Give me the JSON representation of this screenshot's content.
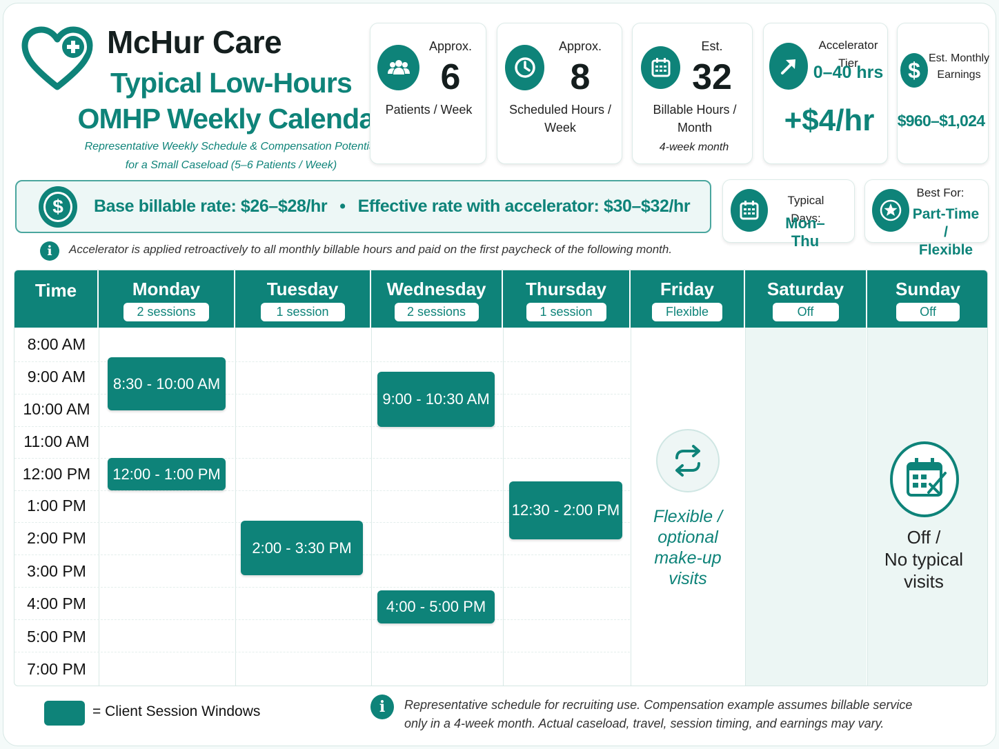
{
  "header": {
    "brand": "McHur Care",
    "title_line1": "Typical Low-Hours",
    "title_line2": "OMHP Weekly Calendar",
    "subtitle_line1": "Representative Weekly Schedule & Compensation Potential",
    "subtitle_line2": "for a Small Caseload (5–6 Patients / Week)"
  },
  "stats": {
    "patients": {
      "top": "Approx.",
      "value": "6",
      "label": "Patients / Week",
      "icon": "people-icon"
    },
    "hours": {
      "top": "Approx.",
      "value": "8",
      "label_line1": "Scheduled Hours /",
      "label_line2": "Week",
      "icon": "clock-icon"
    },
    "billable": {
      "top": "Est.",
      "value": "32",
      "label_line1": "Billable Hours /",
      "label_line2": "Month",
      "note": "4-week month",
      "icon": "calendar-icon"
    },
    "tier": {
      "top": "Accelerator Tier",
      "range": "0–40 hrs",
      "value": "+$4/hr",
      "icon": "arrow-up-right-icon"
    },
    "earnings": {
      "top_line1": "Est. Monthly",
      "top_line2": "Earnings",
      "value": "$960–$1,024",
      "icon": "dollar-icon"
    }
  },
  "rates": {
    "base": "Base billable rate: $26–$28/hr",
    "separator": "•",
    "effective": "Effective rate with accelerator: $30–$32/hr",
    "note": "Accelerator is applied retroactively to all monthly billable hours and paid on the first paycheck of the following month."
  },
  "typical_days": {
    "label": "Typical Days:",
    "value": "Mon–Thu"
  },
  "best_for": {
    "label": "Best For:",
    "value_line1": "Part-Time /",
    "value_line2": "Flexible"
  },
  "calendar": {
    "time_header": "Time",
    "days": [
      {
        "name": "Monday",
        "badge": "2 sessions"
      },
      {
        "name": "Tuesday",
        "badge": "1 session"
      },
      {
        "name": "Wednesday",
        "badge": "2 sessions"
      },
      {
        "name": "Thursday",
        "badge": "1 session"
      },
      {
        "name": "Friday",
        "badge": "Flexible"
      },
      {
        "name": "Saturday",
        "badge": "Off"
      },
      {
        "name": "Sunday",
        "badge": "Off"
      }
    ],
    "times": [
      "8:00 AM",
      "9:00 AM",
      "10:00 AM",
      "11:00 AM",
      "12:00 PM",
      "1:00 PM",
      "2:00 PM",
      "3:00 PM",
      "4:00 PM",
      "5:00 PM",
      "7:00 PM"
    ],
    "sessions": [
      {
        "day": "Monday",
        "label": "8:30 - 10:00 AM"
      },
      {
        "day": "Monday",
        "label": "12:00 - 1:00 PM"
      },
      {
        "day": "Tuesday",
        "label": "2:00 - 3:30 PM"
      },
      {
        "day": "Wednesday",
        "label": "9:00 - 10:30 AM"
      },
      {
        "day": "Wednesday",
        "label": "4:00 - 5:00 PM"
      },
      {
        "day": "Thursday",
        "label": "12:30 - 2:00 PM"
      }
    ],
    "friday_note": [
      "Flexible /",
      "optional",
      "make-up",
      "visits"
    ],
    "weekend_note": [
      "Off /",
      "No typical",
      "visits"
    ]
  },
  "footer": {
    "legend": "= Client Session Windows",
    "disclaimer_line1": "Representative schedule for recruiting use. Compensation example assumes billable service",
    "disclaimer_line2": "only in a 4-week month. Actual caseload, travel, session timing, and earnings may vary."
  },
  "colors": {
    "accent": "#0e8379",
    "shade": "#ecf6f4"
  }
}
